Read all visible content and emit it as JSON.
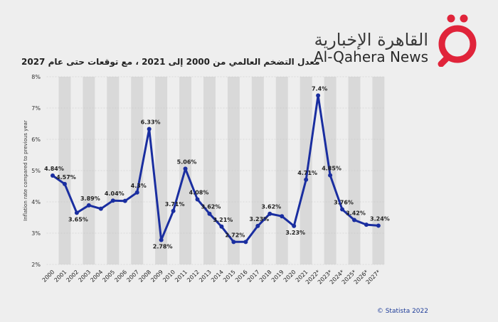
{
  "brand": {
    "name_ar": "القاهرة الإخبارية",
    "name_en": "Al-Qahera News",
    "logo_glyph": "ق",
    "logo_color": "#e0243a"
  },
  "credit": "© Statista 2022",
  "chart_data": {
    "type": "line",
    "title": "معدل التضخم العالمي من 2000 إلى 2021 ، مع توقعات حتى عام 2027",
    "ylabel": "Inflation rate compared to previous year",
    "xlabel": "",
    "categories": [
      "2000",
      "2001",
      "2002",
      "2003",
      "2004",
      "2005",
      "2006",
      "2007",
      "2008",
      "2009",
      "2010",
      "2011",
      "2012",
      "2013",
      "2014",
      "2015",
      "2016",
      "2017",
      "2018",
      "2019",
      "2020",
      "2021",
      "2022*",
      "2023*",
      "2024*",
      "2025*",
      "2026*",
      "2027*"
    ],
    "series": [
      {
        "values": [
          4.84,
          4.57,
          3.65,
          3.89,
          3.78,
          4.04,
          4.03,
          4.3,
          6.33,
          2.78,
          3.71,
          5.06,
          4.08,
          3.62,
          3.21,
          2.72,
          2.72,
          3.23,
          3.62,
          3.54,
          3.23,
          4.71,
          7.4,
          4.85,
          3.76,
          3.42,
          3.27,
          3.24
        ],
        "color": "#1a2ea0"
      }
    ],
    "point_labels": [
      "4.84%",
      "4.57%",
      "3.65%",
      "3.89%",
      "",
      "4.04%",
      "",
      "4.3%",
      "6.33%",
      "2.78%",
      "3.71%",
      "5.06%",
      "4.08%",
      "3.62%",
      "3.21%",
      "2.72%",
      "",
      "3.23%",
      "3.62%",
      "",
      "3.23%",
      "4.71%",
      "7.4%",
      "4.85%",
      "3.76%",
      "3.42%",
      "",
      "3.24%"
    ],
    "yticks": [
      "2%",
      "3%",
      "4%",
      "5%",
      "6%",
      "7%",
      "8%"
    ],
    "ylim": [
      2,
      8
    ],
    "grid": true,
    "legend": "none"
  }
}
